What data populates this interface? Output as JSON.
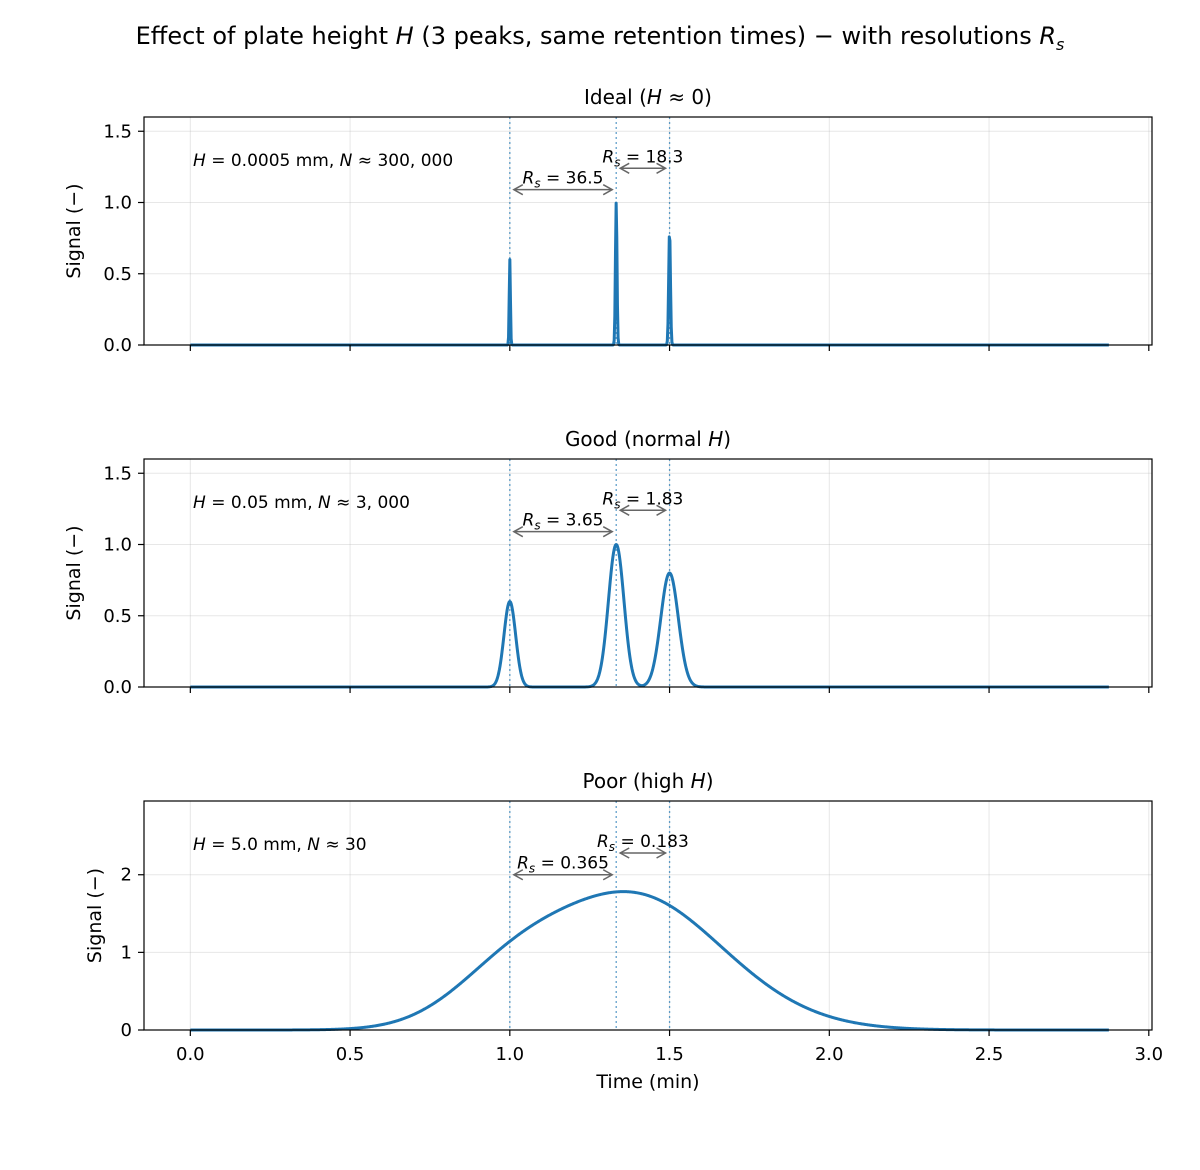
{
  "figure": {
    "suptitle_text": "Effect of plate height ",
    "suptitle_H": "H",
    "suptitle_mid": " (3 peaks, same retention times) − with resolutions ",
    "suptitle_R": "R",
    "suptitle_sub": "s"
  },
  "colors": {
    "line": "#1f77b4",
    "arrow": "#666666"
  },
  "chart_data": [
    {
      "type": "line",
      "title": "Ideal (H ≈ 0)",
      "title_parts": [
        "Ideal (",
        "H",
        " ≈ 0)"
      ],
      "annotation": "H = 0.0005 mm,  N ≈ 300,000",
      "annotation_parts": [
        "H",
        " = 0.0005 mm,  ",
        "N",
        " ≈ 300, 000"
      ],
      "ylabel": "Signal (−)",
      "xlabel": "",
      "ylim": [
        0,
        1.6
      ],
      "yticks": [
        0,
        0.5,
        1.0,
        1.5
      ],
      "ytick_labels": [
        "0.0",
        "0.5",
        "1.0",
        "1.5"
      ],
      "xlim": [
        -0.145,
        3.01
      ],
      "xticks": [
        0,
        0.5,
        1.0,
        1.5,
        2.0,
        2.5,
        3.0
      ],
      "xtick_labels": [],
      "grid": true,
      "x_range": [
        0,
        2.875
      ],
      "peaks": [
        {
          "t": 1.0,
          "height": 0.6,
          "sigma": 0.00183
        },
        {
          "t": 1.333,
          "height": 1.0,
          "sigma": 0.00243
        },
        {
          "t": 1.5,
          "height": 0.8,
          "sigma": 0.00274
        }
      ],
      "resolutions": [
        {
          "from": 1.0,
          "to": 1.333,
          "label": "R_s = 36.5",
          "y": 1.09
        },
        {
          "from": 1.333,
          "to": 1.5,
          "label": "R_s = 18.3",
          "y": 1.24
        }
      ],
      "rs_labels": [
        "36.5",
        "18.3"
      ]
    },
    {
      "type": "line",
      "title": "Good (normal H)",
      "title_parts": [
        "Good (normal ",
        "H",
        ")"
      ],
      "annotation": "H = 0.05 mm,  N ≈ 3,000",
      "annotation_parts": [
        "H",
        " = 0.05 mm,  ",
        "N",
        " ≈ 3, 000"
      ],
      "ylabel": "Signal (−)",
      "xlabel": "",
      "ylim": [
        0,
        1.6
      ],
      "yticks": [
        0,
        0.5,
        1.0,
        1.5
      ],
      "ytick_labels": [
        "0.0",
        "0.5",
        "1.0",
        "1.5"
      ],
      "xlim": [
        -0.145,
        3.01
      ],
      "xticks": [
        0,
        0.5,
        1.0,
        1.5,
        2.0,
        2.5,
        3.0
      ],
      "xtick_labels": [],
      "grid": true,
      "x_range": [
        0,
        2.875
      ],
      "peaks": [
        {
          "t": 1.0,
          "height": 0.6,
          "sigma": 0.0183
        },
        {
          "t": 1.333,
          "height": 1.0,
          "sigma": 0.0243
        },
        {
          "t": 1.5,
          "height": 0.8,
          "sigma": 0.0274
        }
      ],
      "resolutions": [
        {
          "from": 1.0,
          "to": 1.333,
          "label": "R_s = 3.65",
          "y": 1.09
        },
        {
          "from": 1.333,
          "to": 1.5,
          "label": "R_s = 1.83",
          "y": 1.24
        }
      ],
      "rs_labels": [
        "3.65",
        "1.83"
      ]
    },
    {
      "type": "line",
      "title": "Poor (high H)",
      "title_parts": [
        "Poor (high ",
        "H",
        ")"
      ],
      "annotation": "H = 5.0 mm,  N ≈ 30",
      "annotation_parts": [
        "H",
        " = 5.0 mm,  ",
        "N",
        " ≈ 30"
      ],
      "ylabel": "Signal (−)",
      "xlabel": "Time (min)",
      "ylim": [
        0,
        2.95
      ],
      "yticks": [
        0,
        1,
        2
      ],
      "ytick_labels": [
        "0",
        "1",
        "2"
      ],
      "xlim": [
        -0.145,
        3.01
      ],
      "xticks": [
        0,
        0.5,
        1.0,
        1.5,
        2.0,
        2.5,
        3.0
      ],
      "xtick_labels": [
        "0.0",
        "0.5",
        "1.0",
        "1.5",
        "2.0",
        "2.5",
        "3.0"
      ],
      "grid": true,
      "x_range": [
        0,
        2.875
      ],
      "peaks": [
        {
          "t": 1.0,
          "height": 0.6,
          "sigma": 0.183
        },
        {
          "t": 1.333,
          "height": 1.0,
          "sigma": 0.243
        },
        {
          "t": 1.5,
          "height": 0.8,
          "sigma": 0.274
        }
      ],
      "resolutions": [
        {
          "from": 1.0,
          "to": 1.333,
          "label": "R_s = 0.365",
          "y": 2.0
        },
        {
          "from": 1.333,
          "to": 1.5,
          "label": "R_s = 0.183",
          "y": 2.28
        }
      ],
      "rs_labels": [
        "0.365",
        "0.183"
      ]
    }
  ]
}
